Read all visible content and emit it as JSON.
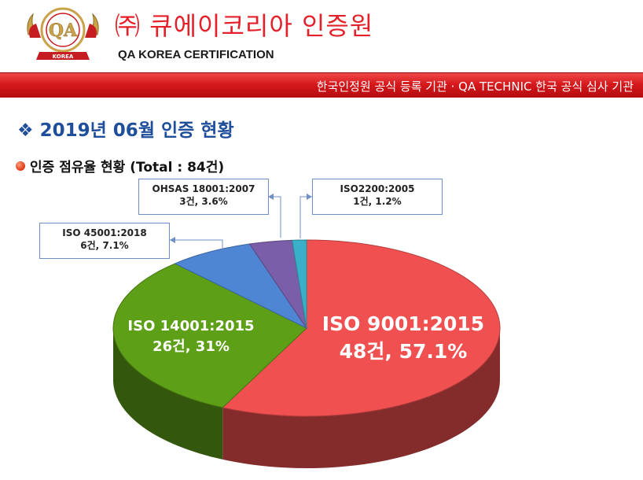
{
  "header": {
    "company_name": "㈜ 큐에이코리아 인증원",
    "company_name_en": "QA KOREA CERTIFICATION",
    "logo_text": "QA",
    "logo_country": "KOREA"
  },
  "banner": {
    "text": "한국인정원 공식 등록 기관 · QA TECHNIC 한국 공식 심사 기관"
  },
  "section": {
    "bullet": "❖",
    "title": "2019년 06월 인증 현황"
  },
  "subtitle": "인증 점유율 현황 (Total : 84건)",
  "colors": {
    "brand_red": "#e4212b",
    "title_blue": "#1f4e9a"
  },
  "chart_data": {
    "type": "pie",
    "title": "인증 점유율 현황 (Total : 84건)",
    "total": 84,
    "series": [
      {
        "name": "ISO 9001:2015",
        "count": 48,
        "percent": 57.1,
        "count_label": "48건, 57.1%",
        "color": "#f05050"
      },
      {
        "name": "ISO 14001:2015",
        "count": 26,
        "percent": 31,
        "count_label": "26건, 31%",
        "color": "#5d9f16"
      },
      {
        "name": "ISO 45001:2018",
        "count": 6,
        "percent": 7.1,
        "count_label": "6건, 7.1%",
        "color": "#4f86d4"
      },
      {
        "name": "OHSAS 18001:2007",
        "count": 3,
        "percent": 3.6,
        "count_label": "3건, 3.6%",
        "color": "#7a5ea8"
      },
      {
        "name": "ISO2200:2005",
        "count": 1,
        "percent": 1.2,
        "count_label": "1건, 1.2%",
        "color": "#3ab0c8"
      }
    ]
  }
}
